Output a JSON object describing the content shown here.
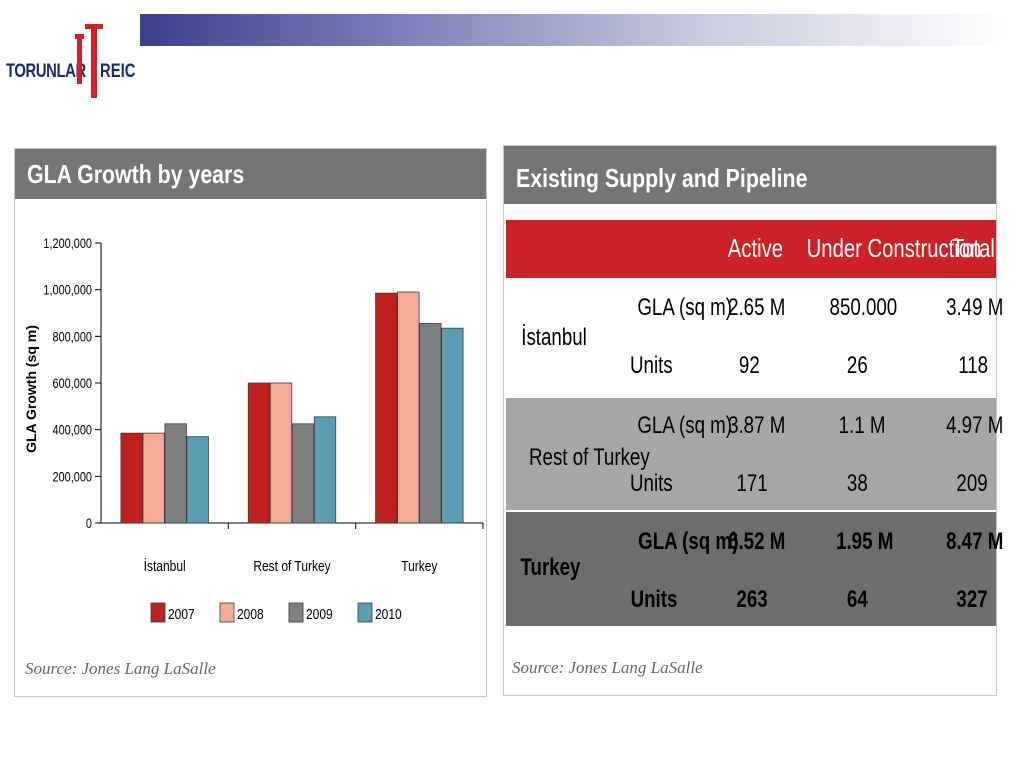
{
  "header": {
    "logo_left": "TORUNLAR",
    "logo_right": "REIC"
  },
  "colors": {
    "header_band": "#3a3f8c",
    "panel_header": "#757575",
    "table_header": "#cc2127",
    "row_istanbul": "#ffffff",
    "row_rest": "#a6a6a6",
    "row_turkey": "#6e6e6e"
  },
  "left_panel": {
    "title": "GLA Growth by years",
    "source": "Source: Jones Lang LaSalle"
  },
  "chart_data": {
    "type": "bar",
    "title": "GLA Growth by years",
    "ylabel": "GLA Growth (sq m)",
    "xlabel": "",
    "categories": [
      "İstanbul",
      "Rest of Turkey",
      "Turkey"
    ],
    "ylim": [
      0,
      1200000
    ],
    "yticks": [
      0,
      200000,
      400000,
      600000,
      800000,
      1000000,
      1200000
    ],
    "ytick_labels": [
      "0",
      "200,000",
      "400,000",
      "600,000",
      "800,000",
      "1,000,000",
      "1,200,000"
    ],
    "grid": false,
    "legend_position": "bottom",
    "series": [
      {
        "name": "2007",
        "color": "#c0201e",
        "values": [
          385000,
          600000,
          985000
        ]
      },
      {
        "name": "2008",
        "color": "#f4ab96",
        "values": [
          385000,
          600000,
          990000
        ]
      },
      {
        "name": "2009",
        "color": "#808080",
        "values": [
          425000,
          425000,
          855000
        ]
      },
      {
        "name": "2010",
        "color": "#5b9eb3",
        "values": [
          370000,
          455000,
          835000
        ]
      }
    ]
  },
  "right_panel": {
    "title": "Existing Supply and Pipeline",
    "source": "Source: Jones Lang LaSalle",
    "columns": [
      "Active",
      "Under Construction",
      "Total"
    ],
    "groups": [
      {
        "region": "İstanbul",
        "rows": [
          {
            "metric": "GLA (sq m)",
            "active": "2.65 M",
            "under_construction": "850.000",
            "total": "3.49 M"
          },
          {
            "metric": "Units",
            "active": "92",
            "under_construction": "26",
            "total": "118"
          }
        ]
      },
      {
        "region": "Rest of Turkey",
        "rows": [
          {
            "metric": "GLA (sq m)",
            "active": "3.87 M",
            "under_construction": "1.1 M",
            "total": "4.97 M"
          },
          {
            "metric": "Units",
            "active": "171",
            "under_construction": "38",
            "total": "209"
          }
        ]
      },
      {
        "region": "Turkey",
        "rows": [
          {
            "metric": "GLA (sq m)",
            "active": "6.52 M",
            "under_construction": "1.95 M",
            "total": "8.47 M"
          },
          {
            "metric": "Units",
            "active": "263",
            "under_construction": "64",
            "total": "327"
          }
        ]
      }
    ]
  }
}
